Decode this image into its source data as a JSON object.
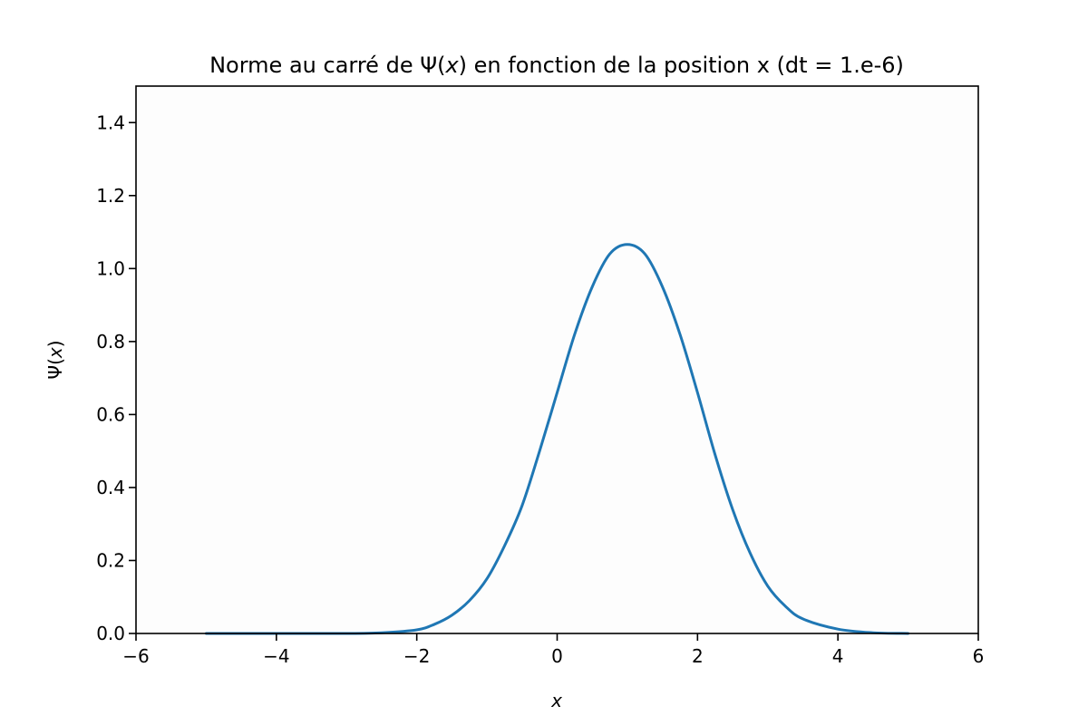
{
  "chart_data": {
    "type": "line",
    "title_prefix": "Norme au carré de Ψ(",
    "title_var": "x",
    "title_suffix": ") en fonction de la position x (dt = 1.e-6)",
    "xlabel": "x",
    "ylabel_prefix": "Ψ(",
    "ylabel_var": "x",
    "ylabel_suffix": ")",
    "xlim": [
      -6,
      6
    ],
    "ylim": [
      0,
      1.5
    ],
    "xticks": [
      -6,
      -4,
      -2,
      0,
      2,
      4,
      6
    ],
    "xtick_labels": [
      "−6",
      "−4",
      "−2",
      "0",
      "2",
      "4",
      "6"
    ],
    "yticks": [
      0,
      0.2,
      0.4,
      0.6,
      0.8,
      1.0,
      1.2,
      1.4
    ],
    "ytick_labels": [
      "0.0",
      "0.2",
      "0.4",
      "0.6",
      "0.8",
      "1.0",
      "1.2",
      "1.4"
    ],
    "grid": false,
    "series": [
      {
        "color": "#1f77b4",
        "x": [
          -5.0,
          -4.0,
          -3.0,
          -2.5,
          -2.0,
          -1.75,
          -1.5,
          -1.25,
          -1.0,
          -0.75,
          -0.5,
          -0.25,
          0.0,
          0.25,
          0.5,
          0.75,
          1.0,
          1.25,
          1.5,
          1.75,
          2.0,
          2.25,
          2.5,
          2.75,
          3.0,
          3.25,
          3.5,
          4.0,
          4.5,
          5.0
        ],
        "y": [
          0.0,
          0.0,
          0.0,
          0.002,
          0.01,
          0.025,
          0.05,
          0.09,
          0.15,
          0.24,
          0.35,
          0.5,
          0.66,
          0.82,
          0.95,
          1.04,
          1.066,
          1.04,
          0.95,
          0.82,
          0.66,
          0.49,
          0.34,
          0.22,
          0.13,
          0.075,
          0.04,
          0.012,
          0.002,
          0.0
        ]
      }
    ]
  }
}
